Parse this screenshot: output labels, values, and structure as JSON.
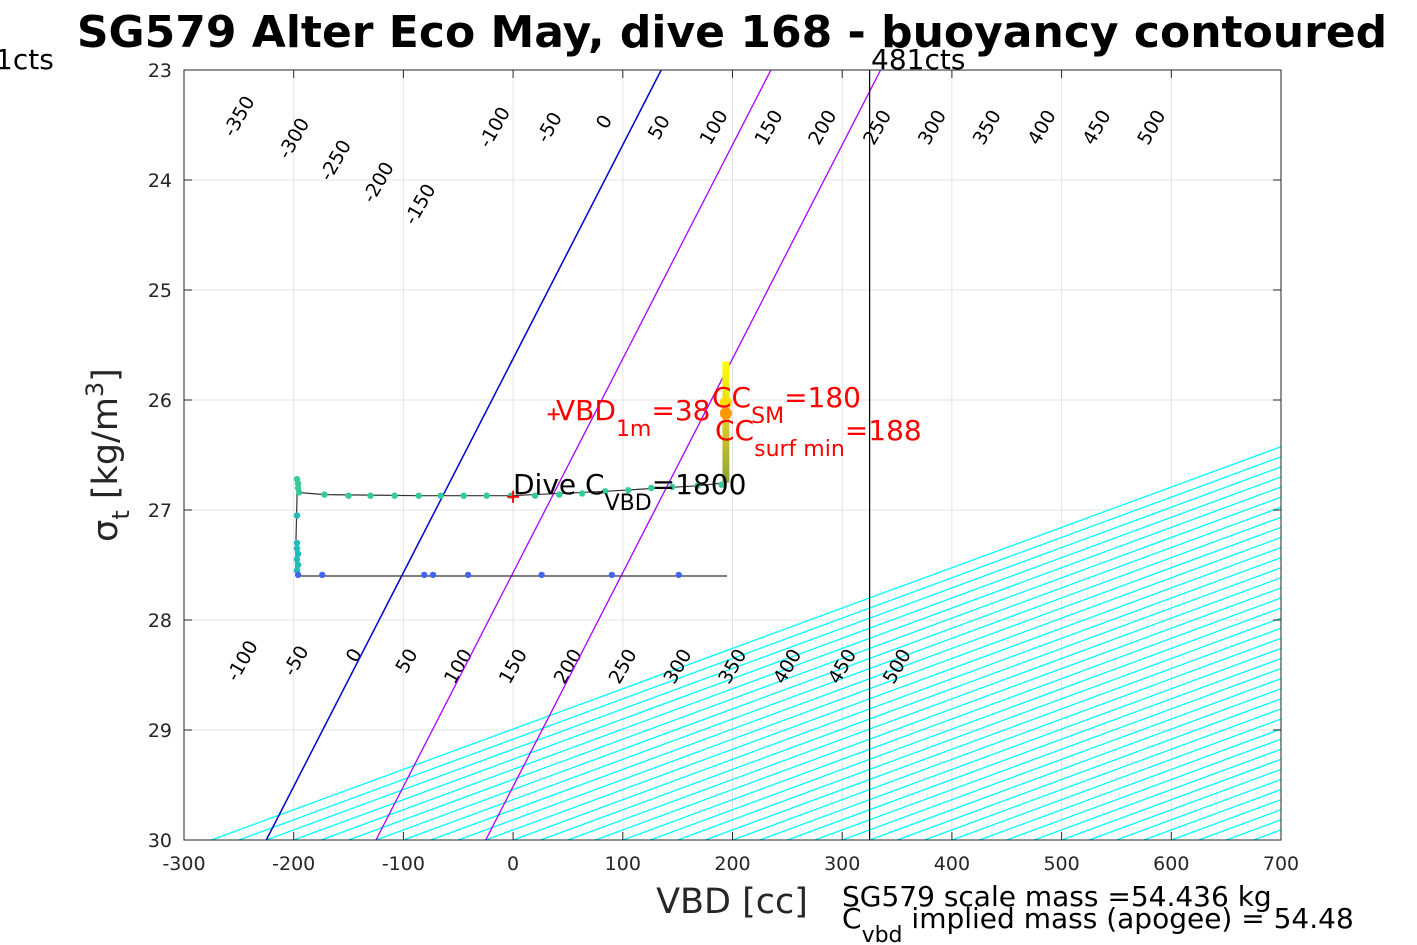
{
  "chart_data": {
    "type": "scatter",
    "title": "SG579 Alter Eco May, dive 168 - buoyancy contoured",
    "xlabel": "VBD [cc]",
    "ylabel_sym": "σ",
    "ylabel_sub": "t",
    "ylabel_unit": " [kg/m",
    "ylabel_sup": "3",
    "ylabel_close": "]",
    "xlim": [
      -300,
      700
    ],
    "ylim": [
      23,
      30
    ],
    "y_reversed": true,
    "grid": true,
    "xticks": [
      "-300",
      "-200",
      "-100",
      "0",
      "100",
      "200",
      "300",
      "400",
      "500",
      "600",
      "700"
    ],
    "xtick_values": [
      -300,
      -200,
      -100,
      0,
      100,
      200,
      300,
      400,
      500,
      600,
      700
    ],
    "yticks": [
      "23",
      "24",
      "25",
      "26",
      "27",
      "28",
      "29",
      "30"
    ],
    "ytick_values": [
      23,
      24,
      25,
      26,
      27,
      28,
      29,
      30
    ],
    "contours": {
      "color": "#00ffff",
      "slope_vbd_per_sigma": 272.7,
      "anchor_sigma": 30,
      "anchor_vbd_levels": [
        -275,
        -250,
        -225,
        -200,
        -175,
        -150,
        -125,
        -100,
        -75,
        -50,
        -25,
        0,
        25,
        50,
        75,
        100,
        125,
        150,
        175,
        200,
        225,
        250,
        275,
        300,
        325,
        350,
        375,
        400,
        425,
        450,
        475,
        500,
        525,
        550,
        575,
        600,
        625,
        650,
        675,
        700
      ],
      "top_labels": [
        "-350",
        "-300",
        "-250",
        "-200",
        "-150",
        "-100",
        "-50",
        "0",
        "50",
        "100",
        "150",
        "200",
        "250",
        "300",
        "350",
        "400",
        "450",
        "500"
      ],
      "top_label_vbd": [
        -245,
        -195,
        -157,
        -118,
        -80,
        -12,
        38,
        88,
        138,
        188,
        238,
        287,
        337,
        387,
        437,
        487,
        537,
        587
      ],
      "top_label_sigma": [
        23.45,
        23.65,
        23.85,
        24.05,
        24.25,
        23.55,
        23.55,
        23.5,
        23.55,
        23.55,
        23.55,
        23.55,
        23.55,
        23.55,
        23.55,
        23.55,
        23.55,
        23.55
      ],
      "bottom_labels": [
        "-100",
        "-50",
        "0",
        "50",
        "100",
        "150",
        "200",
        "250",
        "300",
        "350",
        "400",
        "450",
        "500"
      ],
      "bottom_label_vbd": [
        -242,
        -193,
        -140,
        -92,
        -45,
        5,
        55,
        105,
        155,
        205,
        255,
        305,
        355
      ],
      "bottom_label_sigma": [
        28.4,
        28.4,
        28.35,
        28.4,
        28.45,
        28.45,
        28.45,
        28.45,
        28.45,
        28.45,
        28.45,
        28.45,
        28.45
      ]
    },
    "zero_line": {
      "color": "#0000cd",
      "vbd_at_30": -225,
      "vbd_at_23": 135
    },
    "purple_lines": {
      "color": "#aa00ff",
      "vbd_at_30": [
        -125,
        -25
      ],
      "vbd_at_23": [
        235,
        335
      ]
    },
    "apogee_line": {
      "vbd": 325,
      "label": "481cts"
    },
    "left_edge_label": "1cts",
    "series": [
      {
        "name": "",
        "color": "#33cc99",
        "x": [
          -197,
          -196,
          -196,
          -195,
          -172,
          -150,
          -130,
          -108,
          -86,
          -66,
          -45,
          -24,
          -2,
          20,
          42,
          63,
          84,
          105,
          126,
          145,
          168,
          190
        ],
        "y": [
          26.72,
          26.76,
          26.8,
          26.84,
          26.86,
          26.87,
          26.87,
          26.87,
          26.87,
          26.87,
          26.87,
          26.87,
          26.87,
          26.87,
          26.86,
          26.85,
          26.83,
          26.82,
          26.8,
          26.79,
          26.78,
          26.77
        ]
      },
      {
        "name": "",
        "color": "#22bbbb",
        "x": [
          -197,
          -197,
          -197,
          -196,
          -197,
          -196,
          -197
        ],
        "y": [
          27.05,
          27.3,
          27.35,
          27.4,
          27.45,
          27.5,
          27.55
        ]
      },
      {
        "name": "",
        "color": "#4466ee",
        "x": [
          -196,
          -174,
          -81,
          -73,
          -41,
          26,
          90,
          151
        ],
        "y": [
          27.59,
          27.59,
          27.59,
          27.59,
          27.59,
          27.59,
          27.59,
          27.59
        ]
      }
    ],
    "dive_path": {
      "x": [
        -197,
        -197,
        -198,
        -198,
        -196,
        -150,
        -86,
        -24,
        42,
        105,
        168,
        195,
        195
      ],
      "y": [
        26.72,
        26.9,
        27.3,
        27.59,
        27.6,
        27.6,
        27.6,
        27.6,
        27.6,
        27.6,
        27.6,
        27.6,
        27.6
      ]
    },
    "ascent_path": {
      "x": [
        -197,
        -172,
        -86,
        -2,
        84,
        168,
        195
      ],
      "y": [
        26.84,
        26.86,
        26.87,
        26.87,
        26.83,
        26.78,
        26.75
      ]
    },
    "surface_bar": {
      "vbd": 194,
      "sigma_top": 25.65,
      "sigma_bottom": 26.75
    },
    "markers": [
      {
        "vbd": 0,
        "sigma": 26.88,
        "color": "#ff0000",
        "symbol": "+"
      },
      {
        "vbd": 37,
        "sigma": 26.13,
        "color": "#ff0000",
        "symbol": "+"
      }
    ],
    "annotations": {
      "vbd1m_main": "VBD",
      "vbd1m_sub": "1m",
      "vbd1m_val": "=38",
      "ccsm_main": "CC",
      "ccsm_sub": "SM",
      "ccsm_val": "=180",
      "ccsurf_main": "CC",
      "ccsurf_sub": "surf min",
      "ccsurf_val": "=188",
      "dive_main": "Dive C",
      "dive_sub": "VBD",
      "dive_val": "=1800"
    },
    "footer": {
      "line1": "SG579 scale mass =54.436 kg",
      "line2_main": "C",
      "line2_sub": "vbd",
      "line2_rest": " implied mass (apogee) = 54.48"
    }
  }
}
